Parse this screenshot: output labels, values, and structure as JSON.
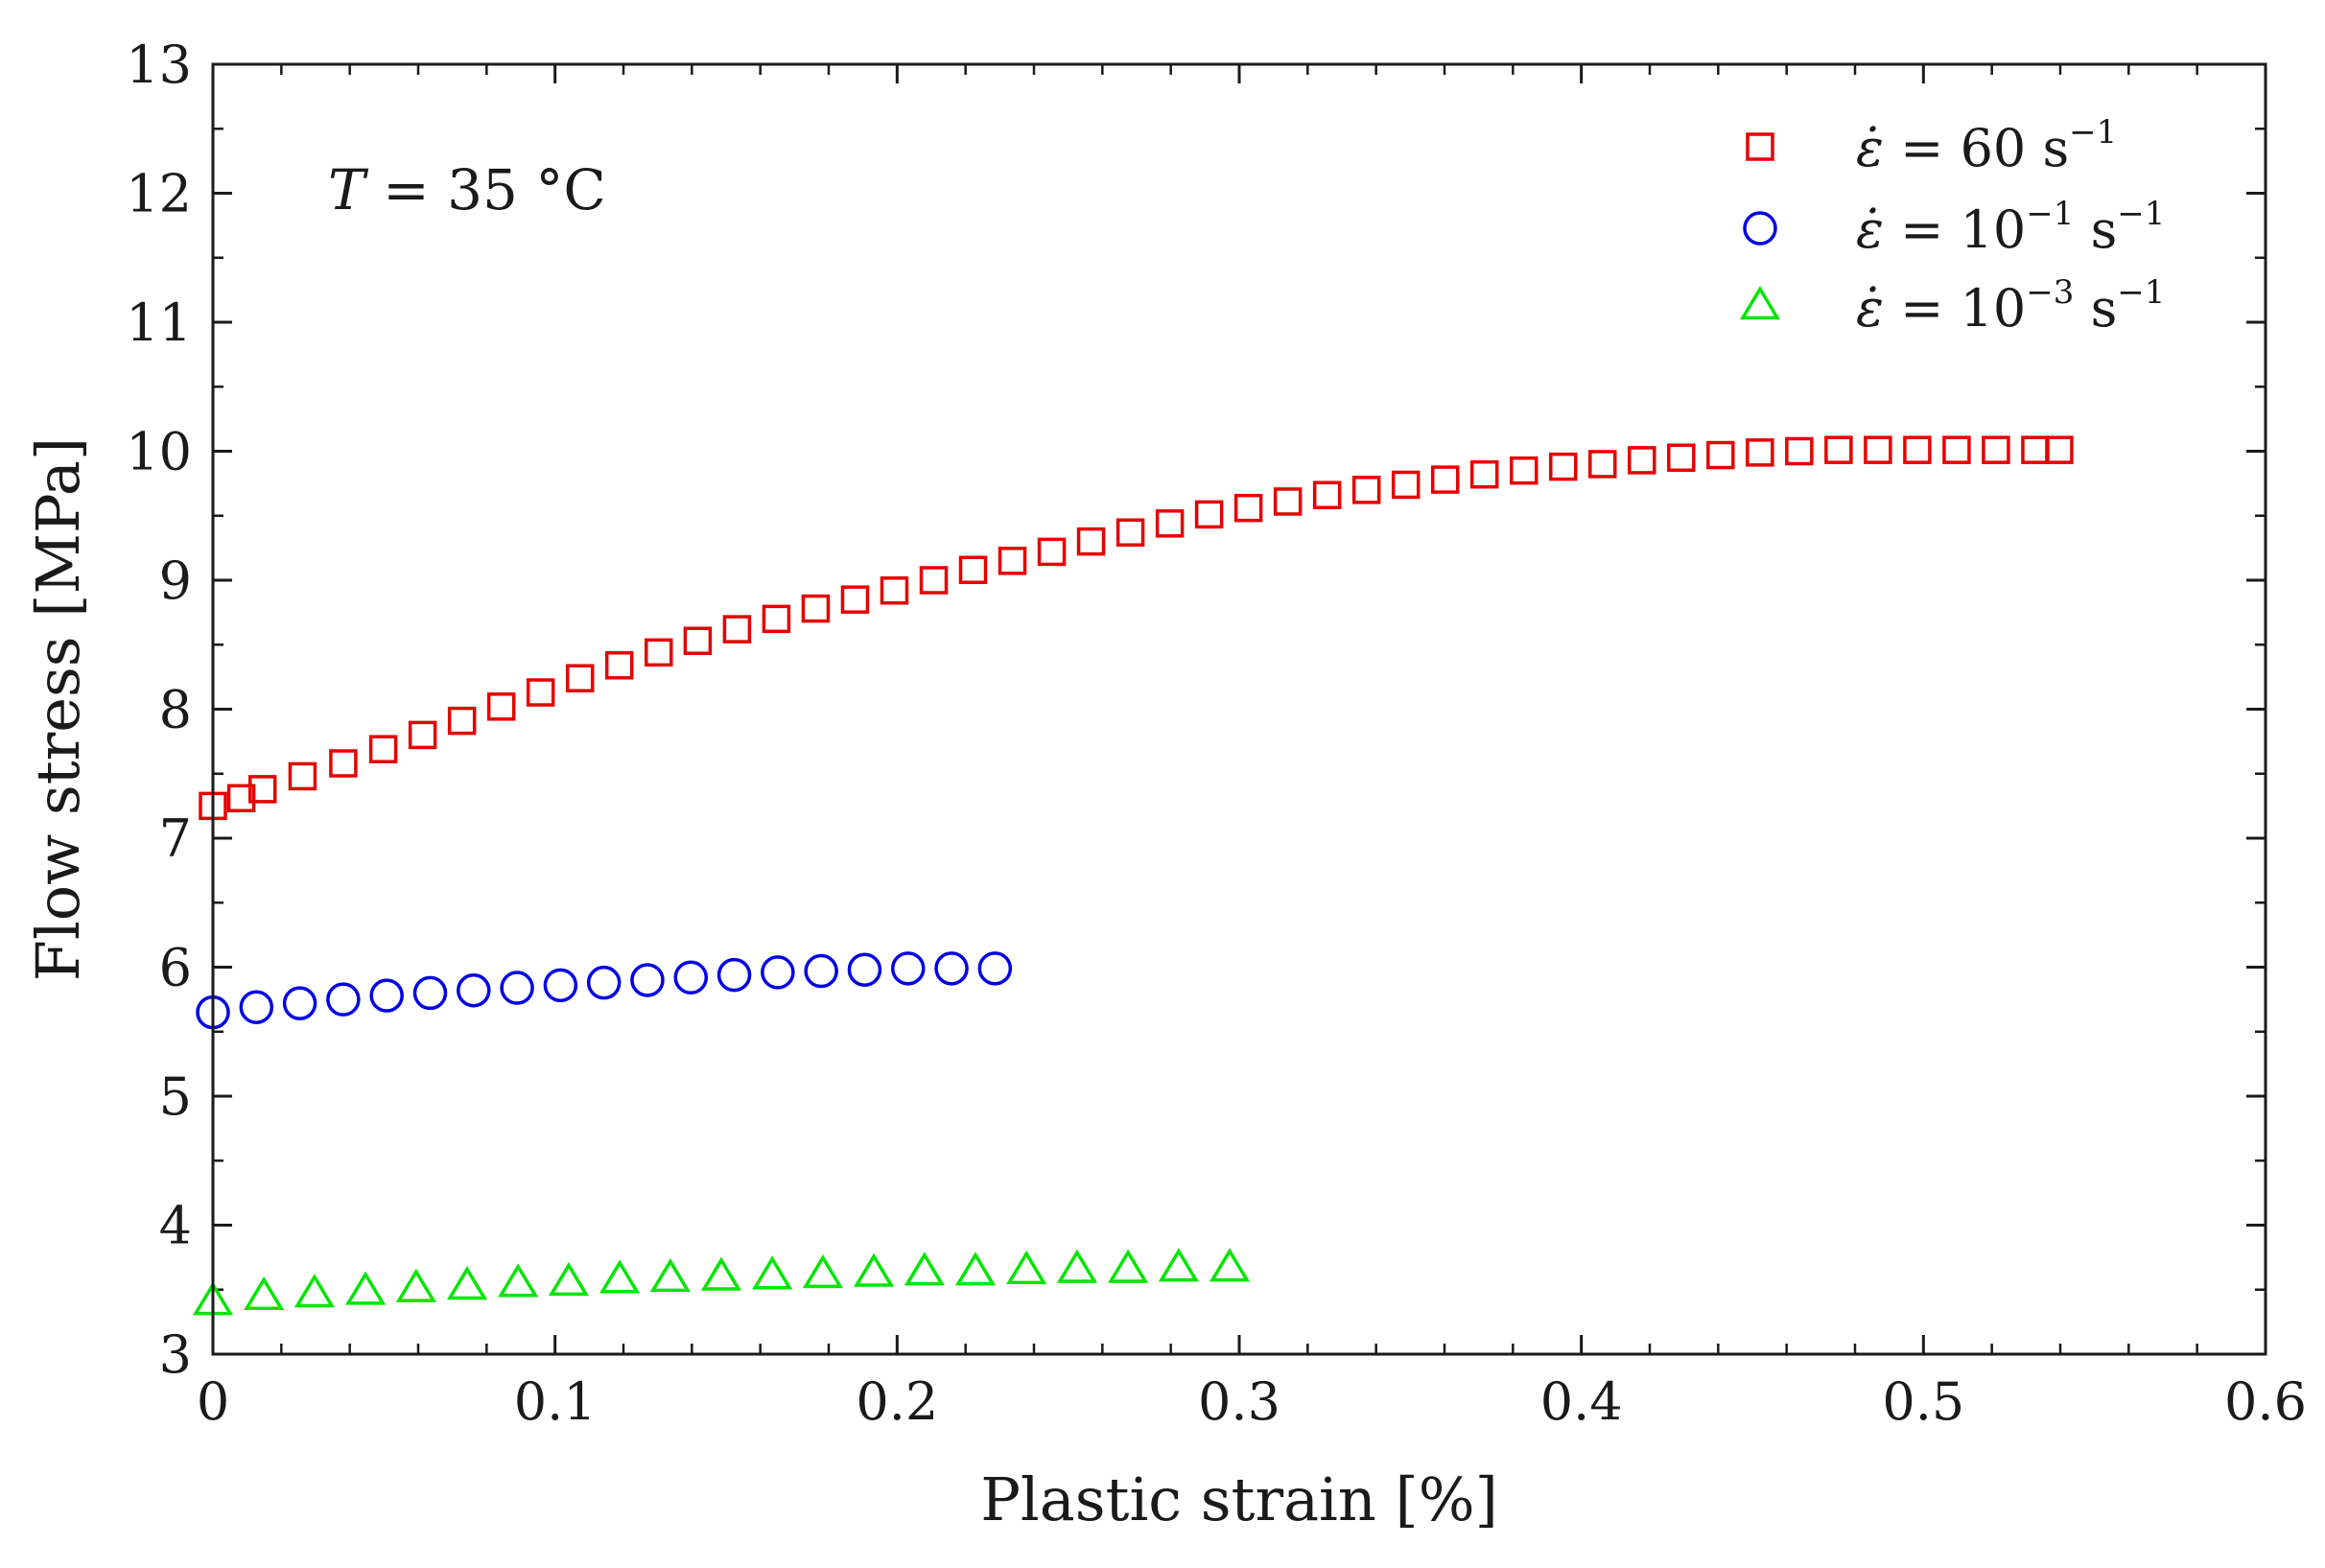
{
  "chart_data": {
    "type": "scatter",
    "xlabel": "Plastic strain [%]",
    "ylabel": "Flow stress [MPa]",
    "xlim": [
      0,
      0.6
    ],
    "ylim": [
      3,
      13
    ],
    "x_ticks": [
      0,
      0.1,
      0.2,
      0.3,
      0.4,
      0.5,
      0.6
    ],
    "x_tick_labels": [
      "0",
      "0.1",
      "0.2",
      "0.3",
      "0.4",
      "0.5",
      "0.6"
    ],
    "y_ticks": [
      3,
      4,
      5,
      6,
      7,
      8,
      9,
      10,
      11,
      12,
      13
    ],
    "y_tick_labels": [
      "3",
      "4",
      "5",
      "6",
      "7",
      "8",
      "9",
      "10",
      "11",
      "12",
      "13"
    ],
    "grid": false,
    "legend_position": "top-right",
    "annotation": {
      "text_italic": "T",
      "text_rest": "= 35 °C"
    },
    "series": [
      {
        "name": "ε̇ = 60 s⁻¹",
        "legend": {
          "lhs": "ε̇ =",
          "base": "60 s",
          "sup": "−1",
          "tail": ""
        },
        "marker": "square",
        "color": "#e60000",
        "x": [
          0,
          0.0083,
          0.0145,
          0.0262,
          0.0381,
          0.0498,
          0.0613,
          0.0728,
          0.0843,
          0.0958,
          0.1073,
          0.1188,
          0.1303,
          0.1417,
          0.1532,
          0.1647,
          0.1762,
          0.1877,
          0.1992,
          0.2107,
          0.2222,
          0.2337,
          0.2452,
          0.2567,
          0.2682,
          0.2797,
          0.2912,
          0.3027,
          0.3142,
          0.3257,
          0.3372,
          0.3487,
          0.3602,
          0.3717,
          0.3832,
          0.3947,
          0.4062,
          0.4177,
          0.4292,
          0.4407,
          0.4522,
          0.4637,
          0.4752,
          0.4867,
          0.4982,
          0.5097,
          0.5212,
          0.5327,
          0.5397
        ],
        "y": [
          7.25,
          7.31,
          7.38,
          7.48,
          7.58,
          7.69,
          7.8,
          7.91,
          8.02,
          8.13,
          8.24,
          8.34,
          8.44,
          8.53,
          8.62,
          8.7,
          8.78,
          8.85,
          8.92,
          9.0,
          9.08,
          9.15,
          9.22,
          9.3,
          9.37,
          9.44,
          9.51,
          9.56,
          9.61,
          9.66,
          9.7,
          9.74,
          9.78,
          9.82,
          9.85,
          9.88,
          9.9,
          9.93,
          9.95,
          9.97,
          9.99,
          10.0,
          10.01,
          10.01,
          10.01,
          10.01,
          10.01,
          10.01,
          10.01
        ]
      },
      {
        "name": "ε̇ = 10⁻¹ s⁻¹",
        "legend": {
          "lhs": "ε̇ =",
          "base": "10",
          "sup": "−1",
          "tail": " s",
          "sup2": "−1"
        },
        "marker": "circle",
        "color": "#0000e6",
        "x": [
          0,
          0.0127,
          0.0254,
          0.0381,
          0.0508,
          0.0635,
          0.0762,
          0.0889,
          0.1016,
          0.1143,
          0.127,
          0.1397,
          0.1524,
          0.1651,
          0.1778,
          0.1905,
          0.2032,
          0.2159,
          0.2286
        ],
        "y": [
          5.65,
          5.69,
          5.72,
          5.75,
          5.78,
          5.8,
          5.82,
          5.84,
          5.86,
          5.88,
          5.9,
          5.92,
          5.94,
          5.96,
          5.97,
          5.98,
          5.99,
          5.99,
          5.99
        ]
      },
      {
        "name": "ε̇ = 10⁻³ s⁻¹",
        "legend": {
          "lhs": "ε̇ =",
          "base": "10",
          "sup": "−3",
          "tail": " s",
          "sup2": "−1"
        },
        "marker": "triangle",
        "color": "#00e600",
        "x": [
          0,
          0.0149,
          0.0297,
          0.0446,
          0.0594,
          0.0743,
          0.0892,
          0.104,
          0.1189,
          0.1337,
          0.1486,
          0.1635,
          0.1783,
          0.1932,
          0.208,
          0.2229,
          0.2378,
          0.2526,
          0.2675,
          0.2823,
          0.2972
        ],
        "y": [
          3.4,
          3.44,
          3.46,
          3.48,
          3.5,
          3.52,
          3.54,
          3.55,
          3.57,
          3.58,
          3.59,
          3.6,
          3.61,
          3.62,
          3.63,
          3.63,
          3.64,
          3.65,
          3.65,
          3.66,
          3.66
        ]
      }
    ]
  }
}
